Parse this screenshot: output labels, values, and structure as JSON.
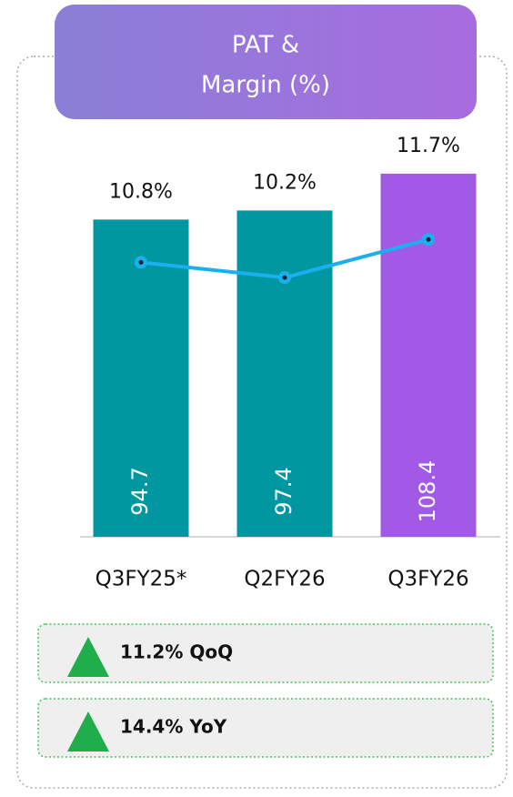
{
  "chart_data": {
    "type": "bar_line",
    "title": [
      "PAT &",
      "Margin (%)"
    ],
    "categories": [
      "Q3FY25*",
      "Q2FY26",
      "Q3FY26"
    ],
    "series": [
      {
        "type": "bar",
        "colors": [
          "#0097a0",
          "#0097a0",
          "#a259e6"
        ],
        "values": [
          94.7,
          97.4,
          108.4
        ]
      },
      {
        "type": "line",
        "axis": "y2",
        "color": "#1ab0f0",
        "values": [
          10.8,
          10.2,
          11.7
        ],
        "value_labels": [
          "10.8%",
          "10.2%",
          "11.7%"
        ]
      }
    ],
    "ylim": [
      0,
      110
    ],
    "y2lim": [
      0,
      14.5
    ],
    "annotations": [
      {
        "text": "11.2% QoQ",
        "color": "#1fae4b"
      },
      {
        "text": "14.4% YoY",
        "color": "#1fae4b"
      }
    ]
  }
}
